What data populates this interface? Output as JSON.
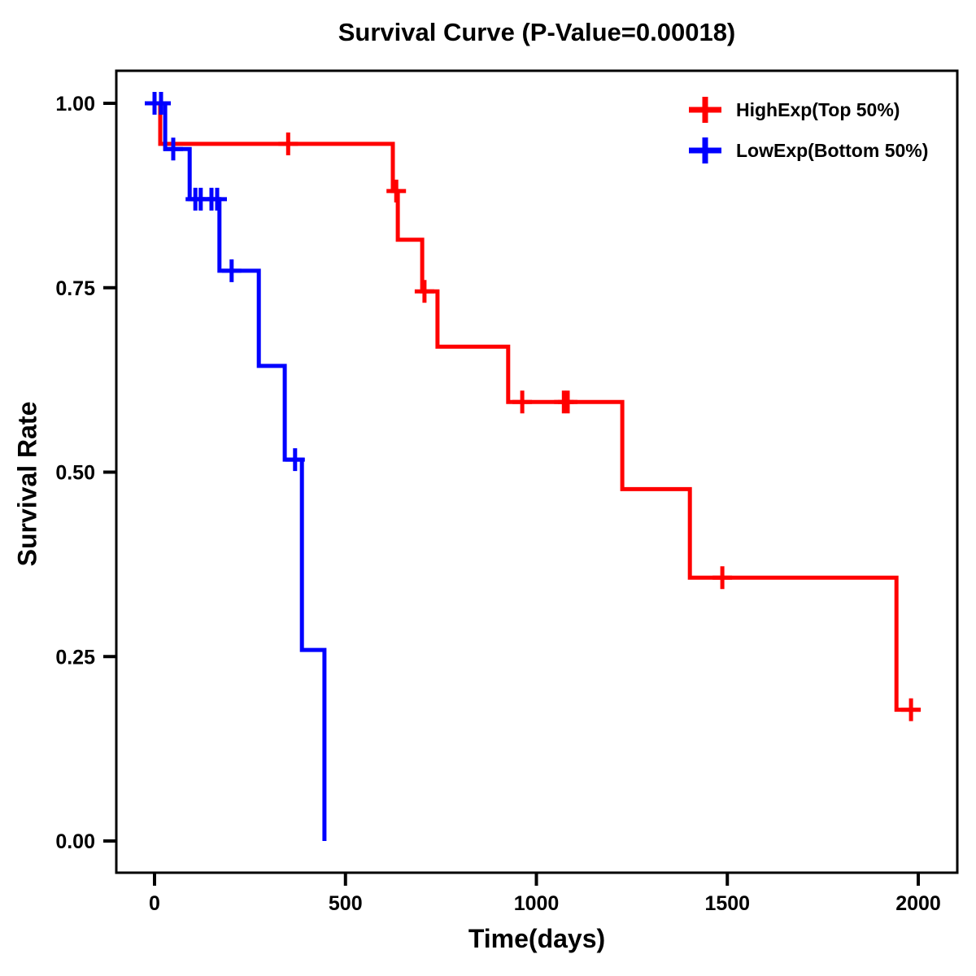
{
  "page": {
    "background": "#ffffff"
  },
  "chart_data": {
    "type": "line",
    "subtype": "kaplan-meier-step-curve",
    "title": "Survival Curve (P-Value=0.00018)",
    "p_value": "0.00018",
    "xlabel": "Time(days)",
    "ylabel": "Survival Rate",
    "xlim": [
      -100,
      2100
    ],
    "ylim": [
      -0.045,
      1.045
    ],
    "grid": false,
    "legend_position": "top-right-inside",
    "xticks": {
      "values": [
        0,
        500,
        1000,
        1500,
        2000
      ],
      "labels": [
        "0",
        "500",
        "1000",
        "1500",
        "2000"
      ]
    },
    "yticks": {
      "values": [
        0.0,
        0.25,
        0.5,
        0.75,
        1.0
      ],
      "labels": [
        "0.00",
        "0.25",
        "0.50",
        "0.75",
        "1.00"
      ]
    },
    "series": [
      {
        "name": "HighExp(Top 50%)",
        "color": "#ff0000",
        "style": "step",
        "points": [
          [
            0,
            1.0
          ],
          [
            15,
            0.945
          ],
          [
            624,
            0.881
          ],
          [
            637,
            0.815
          ],
          [
            701,
            0.745
          ],
          [
            741,
            0.67
          ],
          [
            926,
            0.595
          ],
          [
            1225,
            0.477
          ],
          [
            1402,
            0.357
          ],
          [
            1943,
            0.178
          ]
        ],
        "end_time": 2005,
        "censor_marks": [
          [
            350,
            0.945
          ],
          [
            633,
            0.881
          ],
          [
            707,
            0.745
          ],
          [
            963,
            0.595
          ],
          [
            1072,
            0.595
          ],
          [
            1082,
            0.595
          ],
          [
            1487,
            0.357
          ],
          [
            1981,
            0.178
          ]
        ]
      },
      {
        "name": "LowExp(Bottom 50%)",
        "color": "#0000ff",
        "style": "step",
        "points": [
          [
            0,
            1.0
          ],
          [
            28,
            0.938
          ],
          [
            92,
            0.87
          ],
          [
            170,
            0.773
          ],
          [
            273,
            0.644
          ],
          [
            341,
            0.517
          ],
          [
            386,
            0.259
          ],
          [
            445,
            0.0
          ]
        ],
        "end_time": 445,
        "censor_marks": [
          [
            0,
            1.0
          ],
          [
            17,
            1.0
          ],
          [
            49,
            0.938
          ],
          [
            107,
            0.87
          ],
          [
            121,
            0.87
          ],
          [
            149,
            0.87
          ],
          [
            164,
            0.87
          ],
          [
            202,
            0.773
          ],
          [
            368,
            0.517
          ]
        ]
      }
    ]
  }
}
